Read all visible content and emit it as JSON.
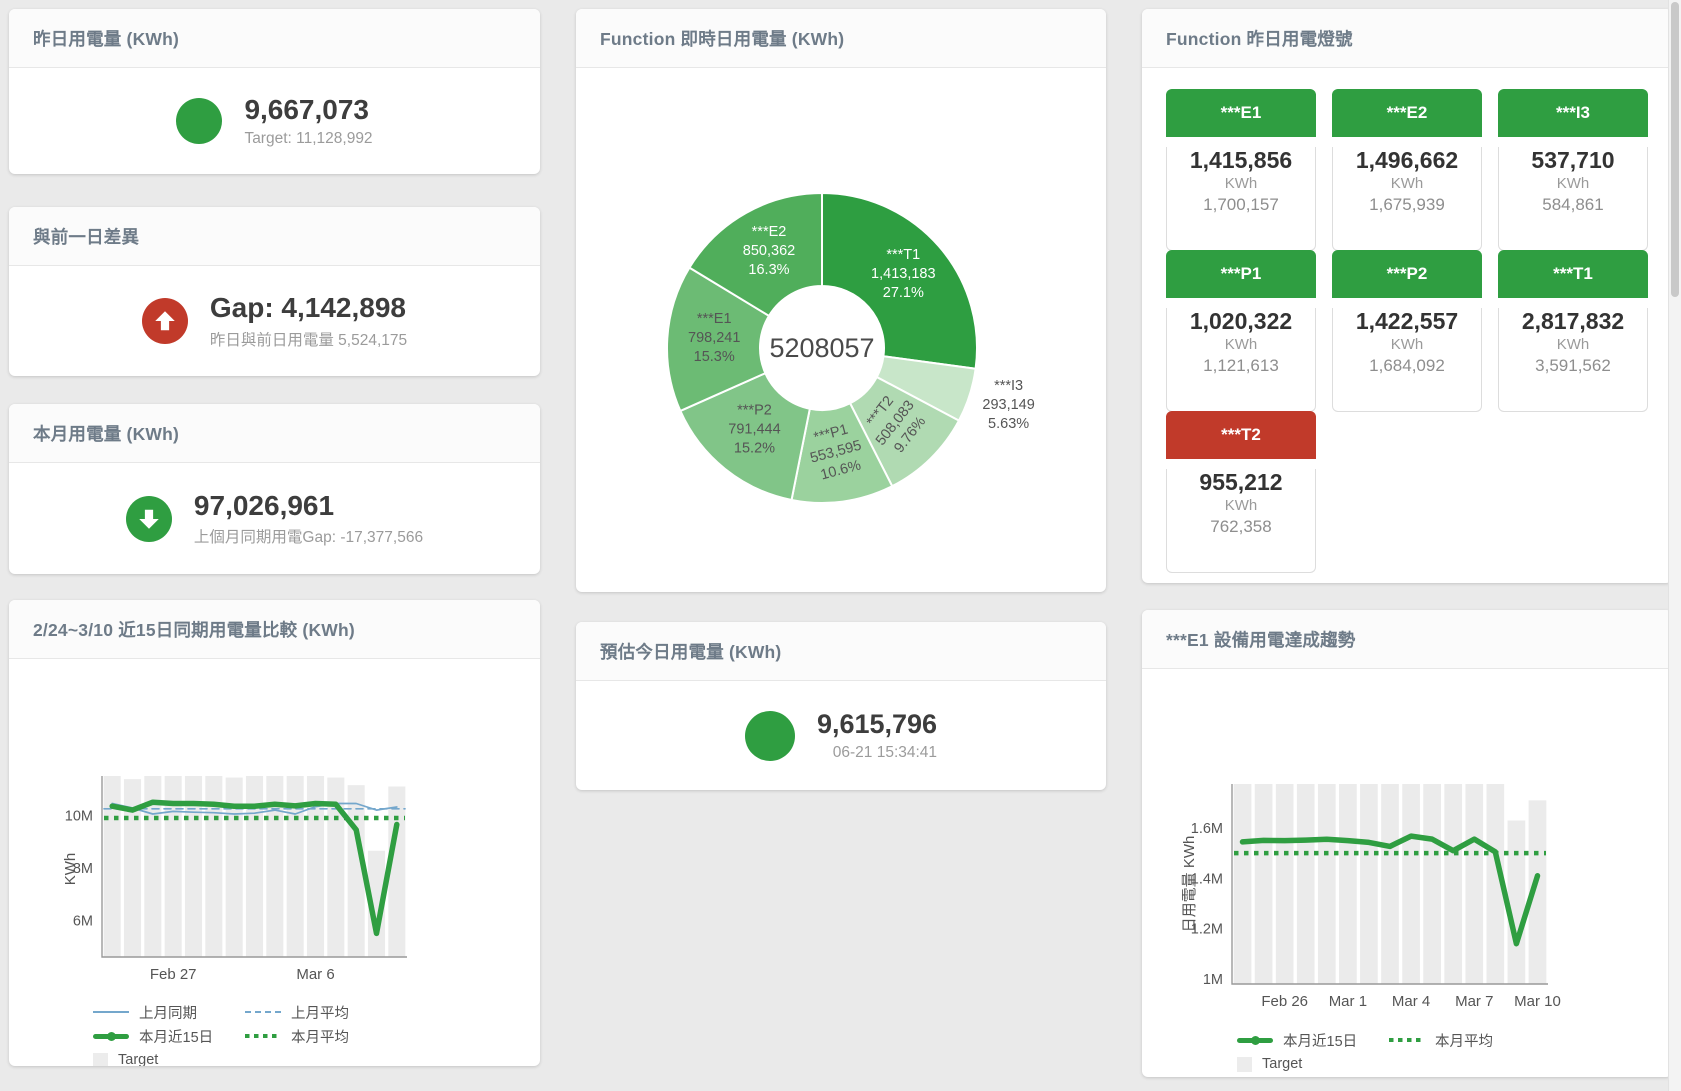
{
  "colors": {
    "green": "#2f9e41",
    "red": "#c13a2a",
    "blue": "#74a7cc",
    "target_bar": "#ebebeb",
    "title": "#6e7b88"
  },
  "cards": {
    "yesterday": {
      "title": "昨日用電量 (KWh)",
      "value": "9,667,073",
      "subtitle": "Target: 11,128,992"
    },
    "diff": {
      "title": "與前一日差異",
      "value": "Gap: 4,142,898",
      "subtitle": "昨日與前日用電量 5,524,175"
    },
    "month": {
      "title": "本月用電量 (KWh)",
      "value": "97,026,961",
      "subtitle": "上個月同期用電Gap: -17,377,566"
    },
    "compare": {
      "title": "2/24~3/10 近15日同期用電量比較 (KWh)"
    },
    "realtime": {
      "title": "Function 即時日用電量 (KWh)"
    },
    "estimate": {
      "title": "預估今日用電量 (KWh)",
      "value": "9,615,796",
      "subtitle": "06-21 15:34:41"
    },
    "lights": {
      "title": "Function 昨日用電燈號",
      "tiles": [
        {
          "label": "***E1",
          "value": "1,415,856",
          "unit": "KWh",
          "target": "1,700,157",
          "status": "green"
        },
        {
          "label": "***E2",
          "value": "1,496,662",
          "unit": "KWh",
          "target": "1,675,939",
          "status": "green"
        },
        {
          "label": "***I3",
          "value": "537,710",
          "unit": "KWh",
          "target": "584,861",
          "status": "green"
        },
        {
          "label": "***P1",
          "value": "1,020,322",
          "unit": "KWh",
          "target": "1,121,613",
          "status": "green"
        },
        {
          "label": "***P2",
          "value": "1,422,557",
          "unit": "KWh",
          "target": "1,684,092",
          "status": "green"
        },
        {
          "label": "***T1",
          "value": "2,817,832",
          "unit": "KWh",
          "target": "3,591,562",
          "status": "green"
        },
        {
          "label": "***T2",
          "value": "955,212",
          "unit": "KWh",
          "target": "762,358",
          "status": "red"
        }
      ]
    },
    "trend": {
      "title": "***E1 設備用電達成趨勢"
    }
  },
  "legend_styles": {
    "上月同期": {
      "type": "line",
      "color": "#74a7cc"
    },
    "上月平均": {
      "type": "dash",
      "color": "#74a7cc"
    },
    "本月近15日": {
      "type": "thick",
      "color": "#2f9e41"
    },
    "本月平均": {
      "type": "dot",
      "color": "#2f9e41"
    },
    "Target": {
      "type": "box",
      "color": "#ececec"
    }
  },
  "chart_data": [
    {
      "id": "donut",
      "type": "pie",
      "title": "Function 即時日用電量 (KWh)",
      "center_label": "5208057",
      "total": 5208057,
      "legend_position": "none",
      "slices": [
        {
          "name": "***T1",
          "value": 1413183,
          "display": "1,413,183",
          "pct": "27.1%",
          "color": "#2e9e41",
          "text": "#ffffff"
        },
        {
          "name": "***I3",
          "value": 293149,
          "display": "293,149",
          "pct": "5.63%",
          "color": "#c8e6c9",
          "text": "#555555",
          "outside": true
        },
        {
          "name": "***T2",
          "value": 508083,
          "display": "508,083",
          "pct": "9.76%",
          "color": "#b0dab2",
          "text": "#555555",
          "rotate": -52
        },
        {
          "name": "***P1",
          "value": 553595,
          "display": "553,595",
          "pct": "10.6%",
          "color": "#9bd29e",
          "text": "#555555",
          "rotate": -15
        },
        {
          "name": "***P2",
          "value": 791444,
          "display": "791,444",
          "pct": "15.2%",
          "color": "#81c588",
          "text": "#555555"
        },
        {
          "name": "***E1",
          "value": 798241,
          "display": "798,241",
          "pct": "15.3%",
          "color": "#6cbb74",
          "text": "#555555"
        },
        {
          "name": "***E2",
          "value": 850362,
          "display": "850,362",
          "pct": "16.3%",
          "color": "#50ae5b",
          "text": "#ffffff"
        }
      ]
    },
    {
      "id": "compare",
      "type": "line",
      "title": "2/24~3/10 近15日同期用電量比較 (KWh)",
      "ylabel": "KWh",
      "unit": "million KWh",
      "grid": false,
      "legend_position": "bottom-left",
      "categories": [
        "2/24",
        "2/25",
        "2/26",
        "2/27",
        "2/28",
        "3/1",
        "3/2",
        "3/3",
        "3/4",
        "3/5",
        "3/6",
        "3/7",
        "3/8",
        "3/9",
        "3/10"
      ],
      "x_tick_labels": [
        {
          "index": 4,
          "label": "Feb 27"
        },
        {
          "index": 11,
          "label": "Mar 6"
        }
      ],
      "y_ticks": [
        {
          "v": 6,
          "label": "6M"
        },
        {
          "v": 8,
          "label": "8M"
        },
        {
          "v": 10,
          "label": "10M"
        }
      ],
      "ylim": [
        4.6,
        11.5
      ],
      "series": [
        {
          "name": "Target",
          "type": "bar",
          "color": "#ebebeb",
          "values": [
            11.5,
            11.38,
            11.5,
            11.5,
            11.5,
            11.5,
            11.44,
            11.5,
            11.5,
            11.5,
            11.5,
            11.44,
            11.15,
            8.65,
            11.1
          ]
        },
        {
          "name": "上月同期",
          "type": "line",
          "dash": "solid",
          "width": 1.7,
          "color": "#74a7cc",
          "values": [
            10.45,
            10.28,
            10.05,
            10.15,
            10.12,
            10.1,
            10.05,
            10.08,
            10.2,
            10.05,
            10.33,
            10.45,
            10.45,
            10.2,
            10.32
          ]
        },
        {
          "name": "上月平均",
          "type": "line",
          "dash": "dashed",
          "width": 1.7,
          "color": "#74a7cc",
          "constant": 10.25
        },
        {
          "name": "本月平均",
          "type": "line",
          "dash": "dotted",
          "width": 4.5,
          "color": "#2f9e41",
          "constant": 9.9
        },
        {
          "name": "本月近15日",
          "type": "line",
          "dash": "solid",
          "width": 5.5,
          "color": "#2f9e41",
          "values": [
            10.35,
            10.2,
            10.5,
            10.45,
            10.45,
            10.42,
            10.35,
            10.35,
            10.42,
            10.36,
            10.45,
            10.42,
            9.45,
            5.5,
            9.65
          ]
        }
      ],
      "legend": [
        [
          "上月同期",
          "上月平均"
        ],
        [
          "本月近15日",
          "本月平均"
        ],
        [
          "Target"
        ]
      ]
    },
    {
      "id": "trend",
      "type": "line",
      "title": "***E1 設備用電達成趨勢",
      "ylabel": "日用電量 KWh",
      "unit": "million KWh",
      "grid": false,
      "legend_position": "bottom-left",
      "categories": [
        "2/24",
        "2/25",
        "2/26",
        "2/27",
        "2/28",
        "3/1",
        "3/2",
        "3/3",
        "3/4",
        "3/5",
        "3/6",
        "3/7",
        "3/8",
        "3/9",
        "3/10"
      ],
      "x_tick_labels": [
        {
          "index": 3,
          "label": "Feb 26"
        },
        {
          "index": 6,
          "label": "Mar 1"
        },
        {
          "index": 9,
          "label": "Mar 4"
        },
        {
          "index": 12,
          "label": "Mar 7"
        },
        {
          "index": 15,
          "label": "Mar 10"
        }
      ],
      "y_ticks": [
        {
          "v": 1,
          "label": "1M"
        },
        {
          "v": 1.2,
          "label": "1.2M"
        },
        {
          "v": 1.4,
          "label": "1.4M"
        },
        {
          "v": 1.6,
          "label": "1.6M"
        }
      ],
      "ylim": [
        0.98,
        1.775
      ],
      "series": [
        {
          "name": "Target",
          "type": "bar",
          "color": "#ebebeb",
          "values": [
            1.775,
            1.775,
            1.775,
            1.775,
            1.775,
            1.775,
            1.775,
            1.775,
            1.775,
            1.775,
            1.775,
            1.775,
            1.775,
            1.63,
            1.71
          ]
        },
        {
          "name": "本月平均",
          "type": "line",
          "dash": "dotted",
          "width": 4.5,
          "color": "#2f9e41",
          "constant": 1.5
        },
        {
          "name": "本月近15日",
          "type": "line",
          "dash": "solid",
          "width": 5.5,
          "color": "#2f9e41",
          "values": [
            1.545,
            1.551,
            1.55,
            1.552,
            1.555,
            1.55,
            1.543,
            1.527,
            1.568,
            1.556,
            1.51,
            1.556,
            1.505,
            1.14,
            1.41
          ]
        }
      ],
      "legend": [
        [
          "本月近15日",
          "本月平均"
        ],
        [
          "Target"
        ]
      ]
    }
  ]
}
